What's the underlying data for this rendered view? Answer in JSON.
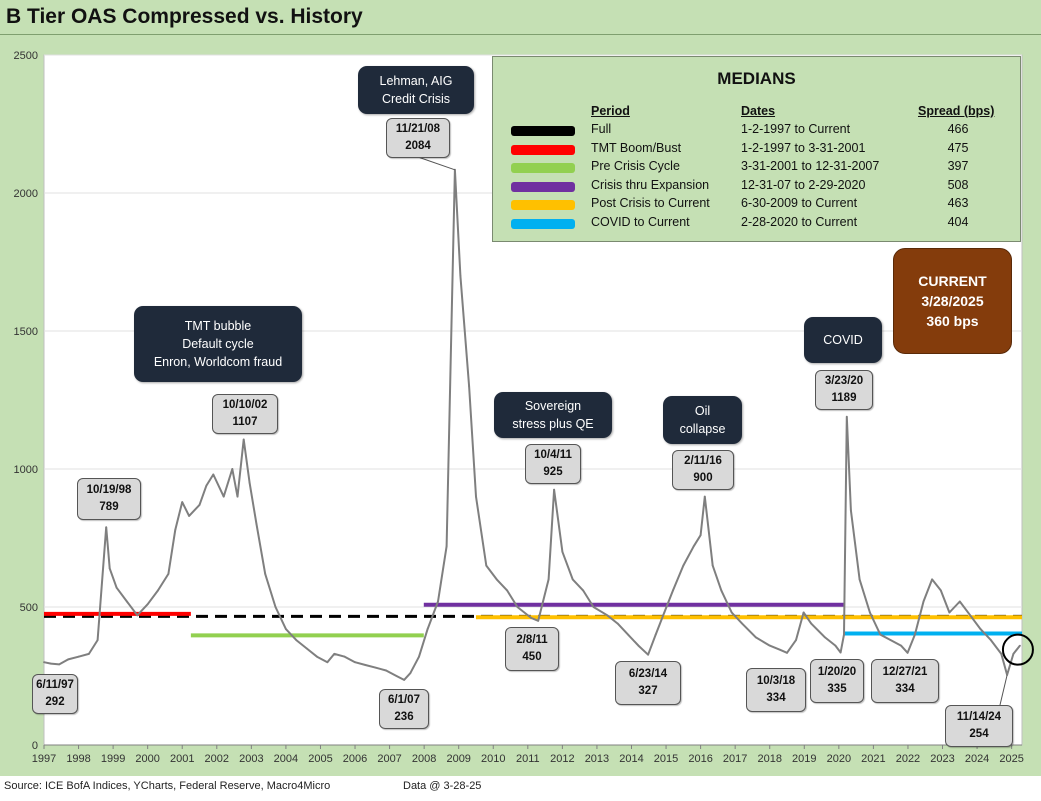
{
  "title": "B Tier OAS Compressed vs. History",
  "source": "Source: ICE BofA Indices, YCharts, Federal Reserve, Macro4Micro",
  "data_date": "Data @ 3-28-25",
  "colors": {
    "background": "#c5e0b4",
    "plot_background": "#ffffff",
    "series": "#7f7f7f",
    "callout_dark": "#1f2a3a",
    "current_box": "#843c0c"
  },
  "medians_box": {
    "title": "MEDIANS",
    "headers": {
      "period": "Period",
      "dates": "Dates",
      "spread": "Spread (bps)"
    },
    "rows": [
      {
        "period": "Full",
        "dates": "1-2-1997  to Current",
        "spread": "466",
        "color": "#000000"
      },
      {
        "period": "TMT Boom/Bust",
        "dates": "1-2-1997  to 3-31-2001",
        "spread": "475",
        "color": "#ff0000"
      },
      {
        "period": "Pre Crisis Cycle",
        "dates": "3-31-2001  to 12-31-2007",
        "spread": "397",
        "color": "#92d050"
      },
      {
        "period": "Crisis thru Expansion",
        "dates": "12-31-07  to 2-29-2020",
        "spread": "508",
        "color": "#7030a0"
      },
      {
        "period": "Post Crisis to Current",
        "dates": "6-30-2009  to Current",
        "spread": "463",
        "color": "#ffc000"
      },
      {
        "period": "COVID to Current",
        "dates": " 2-28-2020  to Current",
        "spread": "404",
        "color": "#00b0f0"
      }
    ]
  },
  "current_box": {
    "line1": "CURRENT",
    "line2": "3/28/2025",
    "line3": "360 bps"
  },
  "event_callouts": [
    {
      "id": "tmt",
      "lines": [
        "TMT bubble",
        "Default cycle",
        "Enron, Worldcom fraud"
      ]
    },
    {
      "id": "lehman",
      "lines": [
        "Lehman, AIG",
        "Credit Crisis"
      ]
    },
    {
      "id": "sovereign",
      "lines": [
        "Sovereign",
        "stress plus QE"
      ]
    },
    {
      "id": "oil",
      "lines": [
        "Oil",
        "collapse"
      ]
    },
    {
      "id": "covid",
      "lines": [
        "COVID"
      ]
    }
  ],
  "value_labels": [
    {
      "date": "6/11/97",
      "value": "292"
    },
    {
      "date": "10/19/98",
      "value": "789"
    },
    {
      "date": "10/10/02",
      "value": "1107"
    },
    {
      "date": "6/1/07",
      "value": "236"
    },
    {
      "date": "11/21/08",
      "value": "2084"
    },
    {
      "date": "2/8/11",
      "value": "450"
    },
    {
      "date": "10/4/11",
      "value": "925"
    },
    {
      "date": "6/23/14",
      "value": "327"
    },
    {
      "date": "2/11/16",
      "value": "900"
    },
    {
      "date": "10/3/18",
      "value": "334"
    },
    {
      "date": "1/20/20",
      "value": "335"
    },
    {
      "date": "3/23/20",
      "value": "1189"
    },
    {
      "date": "12/27/21",
      "value": "334"
    },
    {
      "date": "11/14/24",
      "value": "254"
    }
  ],
  "chart_data": {
    "type": "line",
    "title": "B Tier OAS Compressed vs. History",
    "xlabel": "",
    "ylabel": "",
    "ylim": [
      0,
      2500
    ],
    "xlim": [
      1997.0,
      2025.3
    ],
    "yticks": [
      "0",
      "500",
      "1000",
      "1500",
      "2000",
      "2500"
    ],
    "xticks": [
      "1997",
      "1998",
      "1999",
      "2000",
      "2001",
      "2002",
      "2003",
      "2004",
      "2005",
      "2006",
      "2007",
      "2008",
      "2009",
      "2010",
      "2011",
      "2012",
      "2013",
      "2014",
      "2015",
      "2016",
      "2017",
      "2018",
      "2019",
      "2020",
      "2021",
      "2022",
      "2023",
      "2024",
      "2025"
    ],
    "grid": "horizontal",
    "series": [
      {
        "name": "B Tier OAS",
        "color": "#7f7f7f",
        "x": [
          1997.0,
          1997.2,
          1997.44,
          1997.7,
          1998.0,
          1998.3,
          1998.55,
          1998.8,
          1998.9,
          1999.1,
          1999.4,
          1999.7,
          2000.0,
          2000.3,
          2000.6,
          2000.8,
          2001.0,
          2001.2,
          2001.5,
          2001.7,
          2001.9,
          2002.2,
          2002.45,
          2002.6,
          2002.78,
          2002.95,
          2003.15,
          2003.4,
          2003.7,
          2004.0,
          2004.3,
          2004.6,
          2004.9,
          2005.2,
          2005.4,
          2005.7,
          2006.0,
          2006.3,
          2006.6,
          2006.9,
          2007.2,
          2007.42,
          2007.6,
          2007.85,
          2008.1,
          2008.4,
          2008.65,
          2008.89,
          2009.05,
          2009.3,
          2009.5,
          2009.8,
          2010.1,
          2010.4,
          2010.7,
          2011.1,
          2011.3,
          2011.6,
          2011.76,
          2012.0,
          2012.3,
          2012.6,
          2012.9,
          2013.3,
          2013.6,
          2013.9,
          2014.2,
          2014.48,
          2014.7,
          2014.95,
          2015.2,
          2015.5,
          2015.8,
          2016.0,
          2016.12,
          2016.35,
          2016.6,
          2016.9,
          2017.2,
          2017.6,
          2018.0,
          2018.3,
          2018.5,
          2018.76,
          2018.98,
          2019.2,
          2019.6,
          2019.9,
          2020.05,
          2020.15,
          2020.23,
          2020.35,
          2020.6,
          2020.9,
          2021.2,
          2021.5,
          2021.8,
          2021.99,
          2022.2,
          2022.45,
          2022.7,
          2022.95,
          2023.2,
          2023.5,
          2023.8,
          2024.1,
          2024.4,
          2024.7,
          2024.87,
          2025.05,
          2025.24
        ],
        "values": [
          300,
          295,
          292,
          310,
          320,
          330,
          380,
          789,
          640,
          570,
          520,
          470,
          510,
          560,
          620,
          780,
          880,
          830,
          870,
          940,
          980,
          900,
          1000,
          900,
          1107,
          950,
          800,
          620,
          500,
          420,
          380,
          350,
          320,
          300,
          330,
          320,
          300,
          290,
          280,
          270,
          250,
          236,
          260,
          320,
          420,
          520,
          720,
          2084,
          1700,
          1300,
          900,
          650,
          600,
          560,
          500,
          460,
          450,
          600,
          925,
          700,
          600,
          560,
          500,
          470,
          440,
          400,
          360,
          327,
          400,
          480,
          560,
          650,
          720,
          760,
          900,
          650,
          560,
          480,
          440,
          390,
          360,
          345,
          334,
          380,
          480,
          440,
          390,
          360,
          335,
          400,
          1189,
          850,
          600,
          480,
          400,
          380,
          360,
          334,
          400,
          520,
          600,
          560,
          480,
          520,
          470,
          420,
          380,
          330,
          254,
          330,
          360
        ]
      }
    ],
    "median_lines": [
      {
        "name": "Full",
        "color": "#000000",
        "value": 466,
        "x_start": 1997.0,
        "x_end": 2025.3,
        "dashed": true
      },
      {
        "name": "TMT Boom/Bust",
        "color": "#ff0000",
        "value": 475,
        "x_start": 1997.0,
        "x_end": 2001.25
      },
      {
        "name": "Pre Crisis Cycle",
        "color": "#92d050",
        "value": 397,
        "x_start": 2001.25,
        "x_end": 2007.99
      },
      {
        "name": "Crisis thru Expansion",
        "color": "#7030a0",
        "value": 508,
        "x_start": 2007.99,
        "x_end": 2020.16
      },
      {
        "name": "Post Crisis to Current",
        "color": "#ffc000",
        "value": 463,
        "x_start": 2009.5,
        "x_end": 2025.3
      },
      {
        "name": "COVID to Current",
        "color": "#00b0f0",
        "value": 404,
        "x_start": 2020.16,
        "x_end": 2025.3
      }
    ],
    "current_marker": {
      "x": 2025.24,
      "value": 360
    }
  }
}
